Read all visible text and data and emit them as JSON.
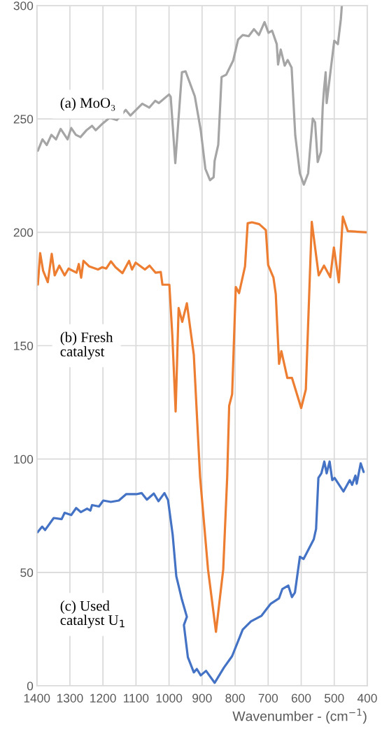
{
  "chart_data": {
    "type": "line",
    "xlabel": "Wavenumber - (cm$^{−1}$)",
    "annotations": [
      "(a) MoO₃",
      "(b) Fresh\ncatalyst",
      "(c) Used\ncatalyst U$_{1}$"
    ],
    "xlim": [
      1400,
      400
    ],
    "ylim": [
      0,
      300
    ],
    "xticks": [
      1400,
      1300,
      1200,
      1100,
      1000,
      900,
      800,
      700,
      600,
      500,
      400
    ],
    "yticks": [
      0,
      50,
      100,
      150,
      200,
      250,
      300
    ],
    "grid": true,
    "legend": false,
    "marker": "none",
    "line_style": "solid",
    "series": [
      {
        "color": "#a5a5a5",
        "x": [
          1397,
          1383,
          1370,
          1356,
          1342,
          1328,
          1307,
          1296,
          1282,
          1268,
          1250,
          1233,
          1222,
          1201,
          1180,
          1158,
          1131,
          1117,
          1081,
          1060,
          1042,
          1031,
          1000,
          995,
          981,
          961,
          950,
          922,
          904,
          890,
          876,
          865,
          862,
          851,
          841,
          827,
          806,
          791,
          777,
          759,
          743,
          728,
          711,
          699,
          688,
          674,
          670,
          662,
          650,
          641,
          629,
          618,
          604,
          592,
          579,
          572,
          565,
          558,
          550,
          540,
          535,
          531,
          526,
          523,
          509,
          500,
          489,
          480,
          477
        ],
        "values": [
          236,
          241,
          238.5,
          243,
          241,
          245.6,
          241,
          246,
          243,
          242,
          245,
          247,
          245,
          248,
          250.5,
          249.5,
          254,
          251.5,
          256.7,
          255,
          258,
          257,
          260.8,
          259.8,
          230.5,
          270.6,
          271,
          260,
          245,
          228,
          223,
          224.3,
          231.5,
          238.7,
          268.5,
          269.5,
          275.7,
          285,
          287,
          286.5,
          289.6,
          287,
          292.7,
          288,
          288.9,
          283,
          274,
          280.6,
          273.5,
          276,
          272.6,
          242.8,
          226,
          221,
          226,
          238.7,
          250.2,
          248.5,
          231,
          235.6,
          255,
          263,
          270.6,
          257,
          273.7,
          284.5,
          283,
          294,
          300
        ]
      },
      {
        "color": "#ed7d31",
        "x": [
          1397,
          1390,
          1381,
          1367,
          1355,
          1346,
          1332,
          1316,
          1304,
          1280,
          1273,
          1266,
          1259,
          1242,
          1215,
          1202,
          1190,
          1176,
          1162,
          1141,
          1121,
          1112,
          1101,
          1073,
          1059,
          1041,
          1025,
          1020,
          999,
          990,
          980,
          971,
          960,
          946,
          925,
          906,
          882,
          858,
          836,
          824,
          818,
          809,
          798,
          788,
          770,
          762,
          749,
          727,
          707,
          700,
          684,
          677,
          667,
          660,
          642,
          628,
          600,
          586,
          568,
          547,
          531,
          512,
          501,
          486,
          474,
          459,
          400
        ],
        "values": [
          176.9,
          190.8,
          183,
          178,
          190.5,
          181,
          185.3,
          181,
          184,
          182.2,
          186,
          180,
          187.4,
          185,
          183.6,
          184.6,
          184,
          187.2,
          184.6,
          182,
          187.4,
          183.6,
          186.6,
          183.6,
          185.3,
          182.2,
          182.5,
          176.9,
          176.9,
          154.3,
          121,
          166.6,
          160.5,
          168.7,
          146,
          92,
          51.3,
          23.8,
          51.3,
          92,
          123.5,
          128.6,
          175.9,
          173.2,
          185,
          204,
          204.4,
          203.6,
          201,
          185.6,
          180,
          172.8,
          142,
          147.6,
          135.8,
          135.8,
          122.5,
          130.7,
          204.6,
          181,
          185.3,
          180.2,
          193.3,
          177.9,
          206.9,
          200.5,
          200
        ]
      },
      {
        "color": "#4472c4",
        "x": [
          1398,
          1384,
          1375,
          1349,
          1325,
          1316,
          1296,
          1281,
          1267,
          1248,
          1238,
          1233,
          1212,
          1199,
          1176,
          1152,
          1130,
          1099,
          1083,
          1067,
          1046,
          1032,
          1014,
          1003,
          989,
          978,
          961,
          946,
          955,
          943,
          925,
          916,
          904,
          888,
          862,
          834,
          809,
          777,
          752,
          720,
          708,
          692,
          667,
          657,
          639,
          628,
          619,
          604,
          593,
          562,
          555,
          548,
          539,
          530,
          523,
          514,
          506,
          499,
          472,
          453,
          446,
          436,
          432,
          420,
          411
        ],
        "values": [
          67.7,
          70.2,
          68.7,
          74,
          73.5,
          76.3,
          75.3,
          78.4,
          76.6,
          78.1,
          77.3,
          79.7,
          79.1,
          81.7,
          81.1,
          81.7,
          84.5,
          84.5,
          85,
          82.1,
          84.8,
          81.4,
          85,
          81.9,
          66.6,
          48.3,
          38,
          30.4,
          26.8,
          12.6,
          5.9,
          7.4,
          4.6,
          6.6,
          1.3,
          8,
          13.1,
          24.8,
          28.4,
          30.9,
          33.2,
          36.2,
          38.6,
          42.7,
          44.2,
          39.1,
          41.1,
          56.9,
          55.9,
          64.6,
          69.2,
          91.7,
          93.7,
          98.9,
          93.7,
          98.9,
          90.7,
          91.7,
          85.7,
          90.7,
          88.6,
          92.7,
          89.1,
          98.1,
          94.3
        ]
      }
    ]
  }
}
